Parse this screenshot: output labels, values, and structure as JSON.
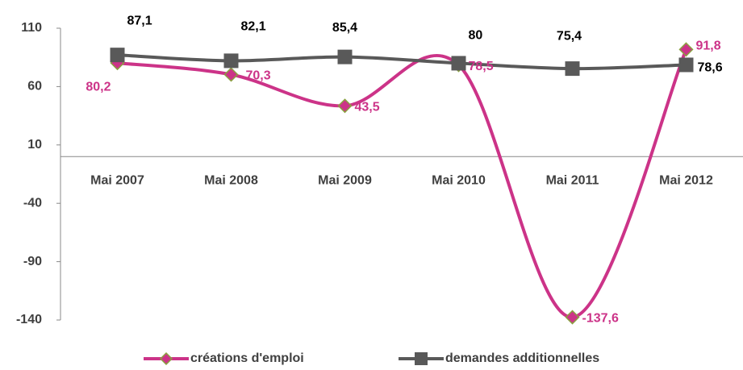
{
  "chart_data": {
    "type": "line",
    "categories": [
      "Mai 2007",
      "Mai 2008",
      "Mai 2009",
      "Mai 2010",
      "Mai 2011",
      "Mai 2012"
    ],
    "series": [
      {
        "name": "créations d'emploi",
        "color": "#cc3388",
        "values": [
          80.2,
          70.3,
          43.5,
          78.5,
          -137.6,
          91.8
        ],
        "value_labels": [
          "80,2",
          "70,3",
          "43,5",
          "78,5",
          "-137,6",
          "91,8"
        ]
      },
      {
        "name": "demandes additionnelles",
        "color": "#595959",
        "values": [
          87.1,
          82.1,
          85.4,
          80,
          75.4,
          78.6
        ],
        "value_labels": [
          "87,1",
          "82,1",
          "85,4",
          "80",
          "75,4",
          "78,6"
        ]
      }
    ],
    "ylim": [
      -140,
      110
    ],
    "yticks": [
      110,
      60,
      10,
      -40,
      -90,
      -140
    ],
    "grid": false,
    "legend": "bottom"
  }
}
